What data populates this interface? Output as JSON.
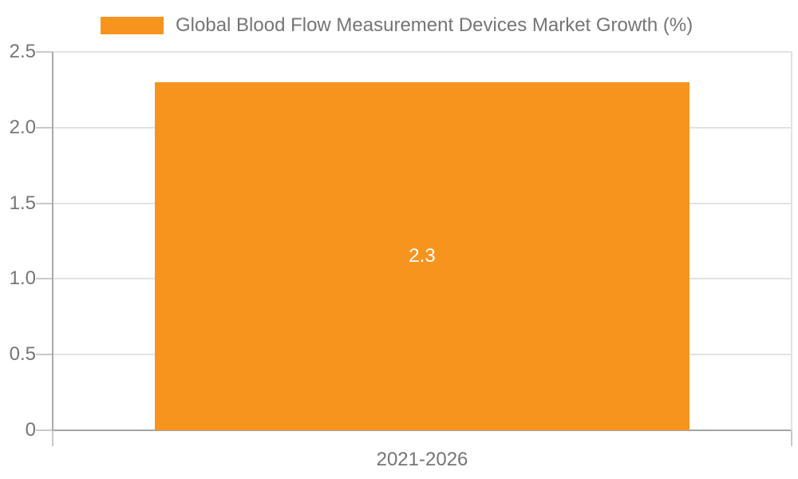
{
  "chart_data": {
    "type": "bar",
    "title": "Global Blood Flow Measurement Devices Market Growth (%)",
    "categories": [
      "2021-2026"
    ],
    "values": [
      2.3
    ],
    "bar_labels": [
      "2.3"
    ],
    "xlabel": "",
    "ylabel": "",
    "ylim": [
      0,
      2.5
    ],
    "yticks": [
      {
        "value": 2.5,
        "label": "2.5"
      },
      {
        "value": 2.0,
        "label": "2.0"
      },
      {
        "value": 1.5,
        "label": "1.5"
      },
      {
        "value": 1.0,
        "label": "1.0"
      },
      {
        "value": 0.5,
        "label": "0.5"
      },
      {
        "value": 0.0,
        "label": "0"
      }
    ],
    "grid": true,
    "legend": {
      "position": "top",
      "items": [
        {
          "label": "Global Blood Flow Measurement Devices Market Growth (%)",
          "swatch_color": "#F7941E"
        }
      ]
    },
    "colors": {
      "bar": "#F7941E",
      "bar_label": "#FFFFFF",
      "grid_line": "#E2E2E2",
      "zero_line": "#A4A4A4",
      "axis_line": "#A9A9A9",
      "tick_line": "#C8C8C8",
      "text": "#757575",
      "background": "#FFFFFF"
    }
  }
}
